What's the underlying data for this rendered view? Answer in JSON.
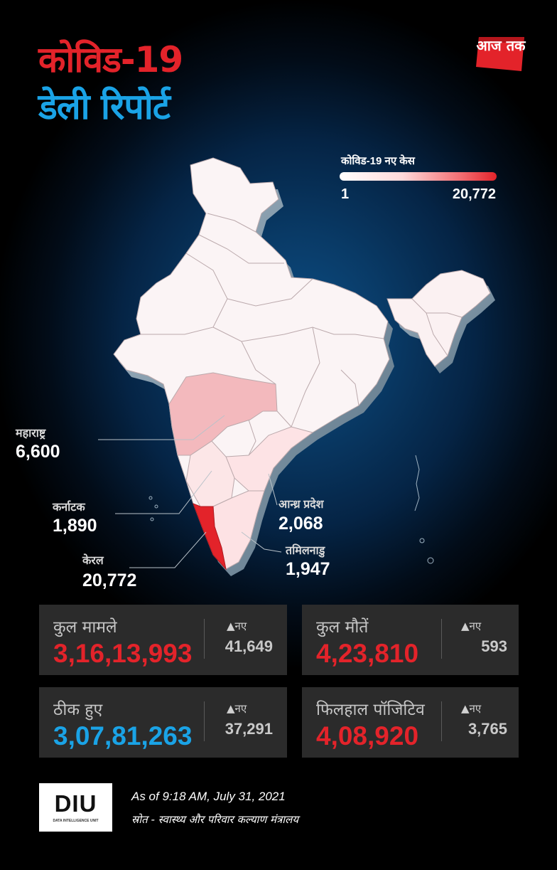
{
  "header": {
    "title_line1": "कोविड-19",
    "title_line2": "डेली रिपोर्ट",
    "logo_text": "आज तक"
  },
  "legend": {
    "title": "कोविड-19 नए केस",
    "min": "1",
    "max": "20,772",
    "color_low": "#ffffff",
    "color_high": "#e3232a"
  },
  "callouts": [
    {
      "name": "महाराष्ट्र",
      "value": "6,600"
    },
    {
      "name": "कर्नाटक",
      "value": "1,890"
    },
    {
      "name": "केरल",
      "value": "20,772"
    },
    {
      "name": "आन्ध्र प्रदेश",
      "value": "2,068"
    },
    {
      "name": "तमिलनाडु",
      "value": "1,947"
    }
  ],
  "stats": [
    {
      "label": "कुल मामले",
      "total": "3,16,13,993",
      "new_label": "▲नए",
      "new_value": "41,649",
      "color": "red"
    },
    {
      "label": "कुल मौतें",
      "total": "4,23,810",
      "new_label": "▲नए",
      "new_value": "593",
      "color": "red"
    },
    {
      "label": "ठीक हुए",
      "total": "3,07,81,263",
      "new_label": "▲नए",
      "new_value": "37,291",
      "color": "blue"
    },
    {
      "label": "फिलहाल पॉजिटिव",
      "total": "4,08,920",
      "new_label": "▲नए",
      "new_value": "3,765",
      "color": "red"
    }
  ],
  "footer": {
    "diu_logo": "DIU",
    "diu_caption": "DATA INTELLIGENCE UNIT",
    "as_of": "As of 9:18 AM, July 31, 2021",
    "source": "स्रोत - स्वास्थ्य और परिवार कल्याण मंत्रालय"
  },
  "colors": {
    "accent_red": "#e3232a",
    "accent_blue": "#1aa3e6",
    "card_bg": "#2b2b2b"
  }
}
